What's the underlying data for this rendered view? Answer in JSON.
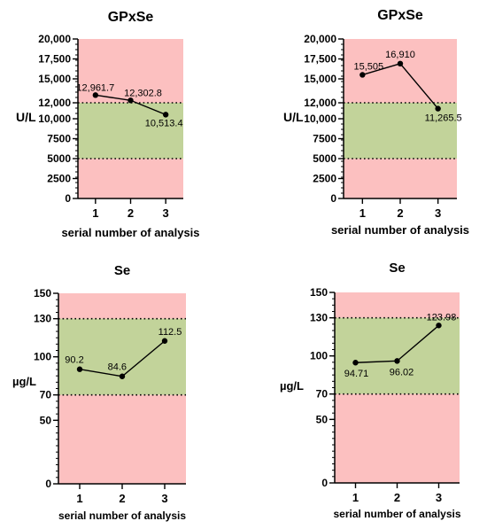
{
  "colors": {
    "out_of_range": "#fcc0c0",
    "in_range": "#c2d39a",
    "line": "#000000"
  },
  "chart_data": [
    {
      "type": "line",
      "title": "GPxSe",
      "ylabel": "U/L",
      "xlabel": "serial number of analysis",
      "x": [
        1,
        2,
        3
      ],
      "y": [
        12961.7,
        12302.8,
        10513.4
      ],
      "data_labels": [
        "12,961.7",
        "12,302.8",
        "10,513.4"
      ],
      "ylim": [
        0,
        20000
      ],
      "yticks": [
        0,
        2500,
        5000,
        7500,
        10000,
        12000,
        15000,
        17500,
        20000
      ],
      "ytick_labels": [
        "0",
        "2500",
        "5000",
        "7500",
        "10,000",
        "12,000",
        "15,000",
        "17,500",
        "20,000"
      ],
      "xticks": [
        "1",
        "2",
        "3"
      ],
      "reference_range": [
        5000,
        12000
      ]
    },
    {
      "type": "line",
      "title": "GPxSe",
      "ylabel": "U/L",
      "xlabel": "serial number of analysis",
      "x": [
        1,
        2,
        3
      ],
      "y": [
        15505,
        16910,
        11265.5
      ],
      "data_labels": [
        "15,505",
        "16,910",
        "11,265.5"
      ],
      "ylim": [
        0,
        20000
      ],
      "yticks": [
        0,
        2500,
        5000,
        7500,
        10000,
        12000,
        15000,
        17500,
        20000
      ],
      "ytick_labels": [
        "0",
        "2500",
        "5000",
        "7500",
        "10,000",
        "12,000",
        "15,000",
        "17,500",
        "20,000"
      ],
      "xticks": [
        "1",
        "2",
        "3"
      ],
      "reference_range": [
        5000,
        12000
      ]
    },
    {
      "type": "line",
      "title": "Se",
      "ylabel": "µg/L",
      "xlabel": "serial number of analysis",
      "x": [
        1,
        2,
        3
      ],
      "y": [
        90.2,
        84.6,
        112.5
      ],
      "data_labels": [
        "90.2",
        "84.6",
        "112.5"
      ],
      "ylim": [
        0,
        150
      ],
      "yticks": [
        0,
        50,
        70,
        100,
        130,
        150
      ],
      "ytick_labels": [
        "0",
        "50",
        "70",
        "100",
        "130",
        "150"
      ],
      "xticks": [
        "1",
        "2",
        "3"
      ],
      "reference_range": [
        70,
        130
      ]
    },
    {
      "type": "line",
      "title": "Se",
      "ylabel": "µg/L",
      "xlabel": "serial number of analysis",
      "x": [
        1,
        2,
        3
      ],
      "y": [
        94.71,
        96.02,
        123.98
      ],
      "data_labels": [
        "94.71",
        "96.02",
        "123.98"
      ],
      "ylim": [
        0,
        150
      ],
      "yticks": [
        0,
        50,
        70,
        100,
        130,
        150
      ],
      "ytick_labels": [
        "0",
        "50",
        "70",
        "100",
        "130",
        "150"
      ],
      "xticks": [
        "1",
        "2",
        "3"
      ],
      "reference_range": [
        70,
        130
      ]
    }
  ]
}
